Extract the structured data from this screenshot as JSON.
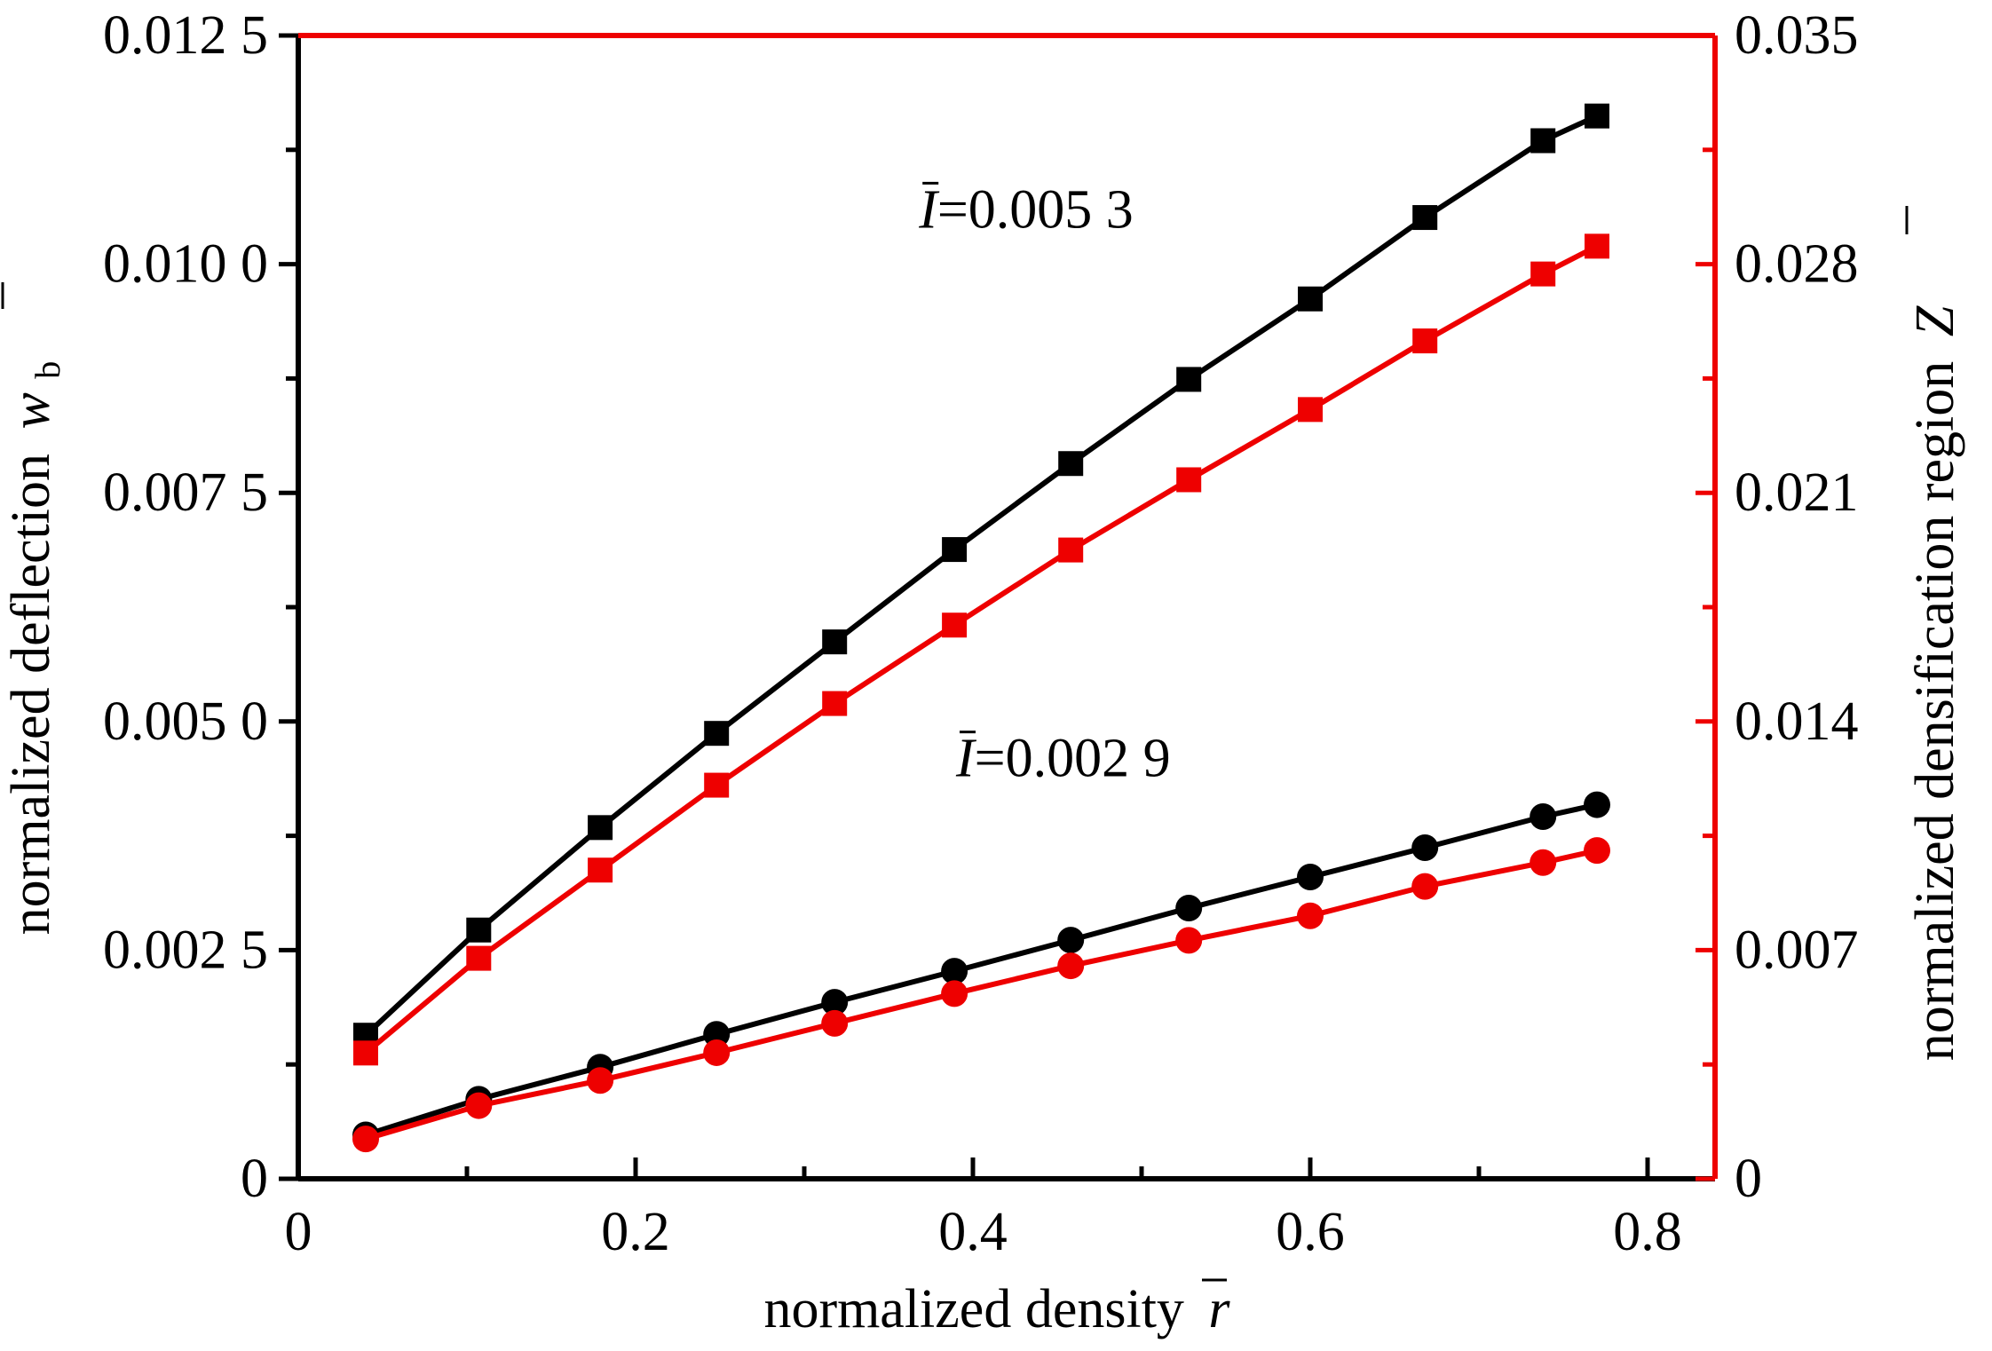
{
  "chart_data": {
    "type": "line",
    "x_axis": {
      "label_text": "normalized density",
      "label_symbol": "r",
      "range": [
        0,
        0.84
      ],
      "ticks": [
        0,
        0.2,
        0.4,
        0.6,
        0.8
      ],
      "tick_labels": [
        "0",
        "0.2",
        "0.4",
        "0.6",
        "0.8"
      ]
    },
    "y_axis_left": {
      "label_text": "normalized deflection",
      "label_symbol": "w",
      "label_subscript": "b",
      "range": [
        0,
        0.0125
      ],
      "ticks": [
        0,
        0.0025,
        0.005,
        0.0075,
        0.01,
        0.0125
      ],
      "tick_labels": [
        "0",
        "0.002 5",
        "0.005 0",
        "0.007 5",
        "0.010 0",
        "0.012 5"
      ],
      "color": "#000000"
    },
    "y_axis_right": {
      "label_text": "normalized densification region",
      "label_symbol": "Z",
      "range": [
        0,
        0.035
      ],
      "ticks": [
        0,
        0.007,
        0.014,
        0.021,
        0.028,
        0.035
      ],
      "tick_labels": [
        "0",
        "0.007",
        "0.014",
        "0.021",
        "0.028",
        "0.035"
      ],
      "color": "#ee0000"
    },
    "x": [
      0.04,
      0.107,
      0.179,
      0.248,
      0.318,
      0.389,
      0.458,
      0.528,
      0.6,
      0.668,
      0.738,
      0.77
    ],
    "series": [
      {
        "axis": "left",
        "group": "I053",
        "marker": "square",
        "color": "#000000",
        "values": [
          0.00157,
          0.00272,
          0.00384,
          0.00487,
          0.00587,
          0.00688,
          0.00782,
          0.00874,
          0.00962,
          0.01051,
          0.01135,
          0.01162
        ]
      },
      {
        "axis": "right",
        "group": "I053",
        "marker": "square",
        "color": "#ee0000",
        "values": [
          0.00385,
          0.00675,
          0.00945,
          0.01205,
          0.01455,
          0.01695,
          0.01925,
          0.0214,
          0.02355,
          0.02565,
          0.0277,
          0.02855
        ]
      },
      {
        "axis": "left",
        "group": "I029",
        "marker": "circle",
        "color": "#000000",
        "values": [
          0.00048,
          0.00087,
          0.00122,
          0.00158,
          0.00193,
          0.00227,
          0.00261,
          0.00296,
          0.0033,
          0.00362,
          0.00396,
          0.00409
        ]
      },
      {
        "axis": "right",
        "group": "I029",
        "marker": "circle",
        "color": "#ee0000",
        "values": [
          0.00122,
          0.00224,
          0.00301,
          0.00386,
          0.00476,
          0.00567,
          0.00652,
          0.0073,
          0.00805,
          0.00895,
          0.00968,
          0.01005
        ]
      }
    ],
    "annotations": [
      {
        "symbol": "I",
        "text": "=0.005 3",
        "x": 0.368,
        "y_left": 0.0104
      },
      {
        "symbol": "I",
        "text": "=0.002 9",
        "x": 0.39,
        "y_left": 0.0044
      }
    ]
  }
}
